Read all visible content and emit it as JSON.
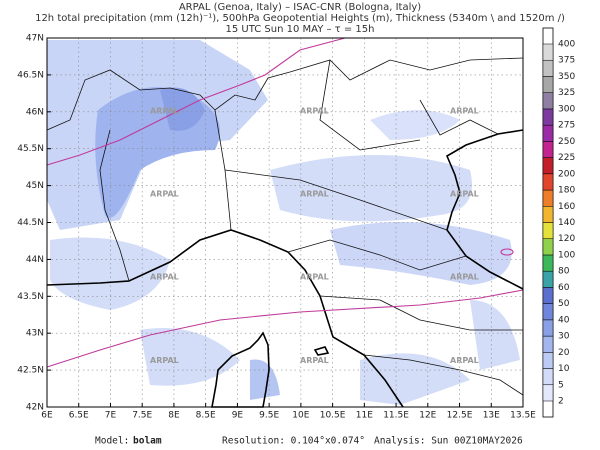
{
  "header": {
    "lines": [
      "ARPAL (Genoa, Italy)  –  ISAC-CNR (Bologna, Italy)",
      "12h total precipitation (mm (12h)⁻¹), 500hPa Geopotential Heights (m), Thickness (5340m \\ and 1520m /)",
      "15 UTC Sun 10 MAY  –  τ = 15h"
    ]
  },
  "map": {
    "lon_ticks": [
      "6E",
      "6.5E",
      "7E",
      "7.5E",
      "8E",
      "8.5E",
      "9E",
      "9.5E",
      "10E",
      "10.5E",
      "11E",
      "11.5E",
      "12E",
      "12.5E",
      "13E",
      "13.5E"
    ],
    "lat_ticks": [
      "42N",
      "42.5N",
      "43N",
      "43.5N",
      "44N",
      "44.5N",
      "45N",
      "45.5N",
      "46N",
      "46.5N",
      "47N"
    ],
    "watermark": "ARPAL"
  },
  "colorbar": {
    "levels": [
      2,
      5,
      10,
      20,
      30,
      40,
      50,
      60,
      80,
      100,
      120,
      140,
      160,
      180,
      200,
      225,
      250,
      275,
      300,
      325,
      350,
      375,
      400
    ],
    "colors": [
      "#e4e8fb",
      "#d2dbf8",
      "#bccbf4",
      "#a3b6ee",
      "#8aa0e6",
      "#6f86dc",
      "#5a6fce",
      "#3aa3a8",
      "#3cb85a",
      "#8fd14a",
      "#e4e23a",
      "#f2b52e",
      "#ee7f28",
      "#e2462a",
      "#c21f2a",
      "#c3238f",
      "#9a2aa5",
      "#7c3aa0",
      "#8f7fa3",
      "#a7a7a7",
      "#c2c2c2",
      "#dadada"
    ]
  },
  "footer": {
    "model_label": "Model:",
    "model": "bolam",
    "resolution": "Resolution: 0.104°x0.074°",
    "analysis": "Analysis: Sun 00Z10MAY2026"
  }
}
